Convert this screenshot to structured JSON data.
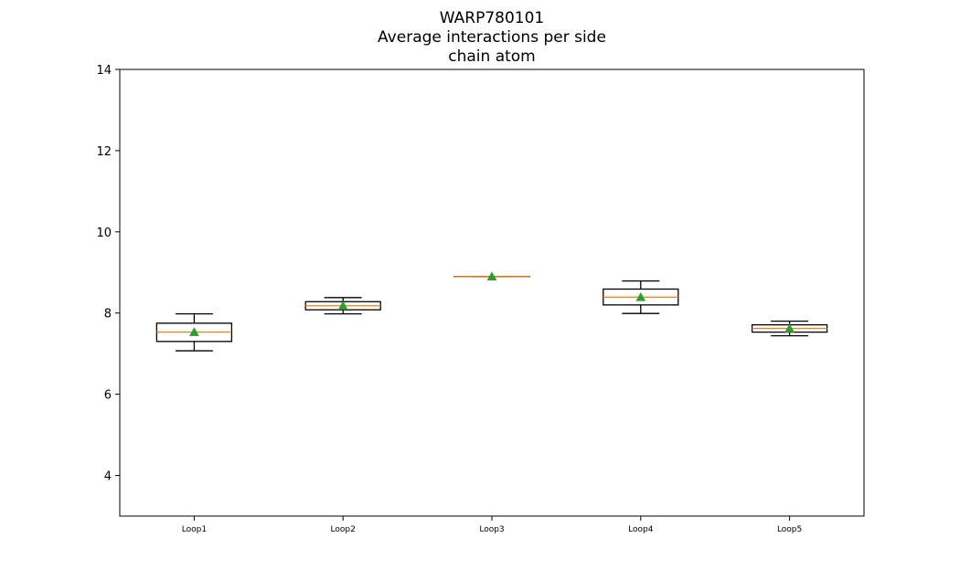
{
  "chart_data": {
    "type": "box",
    "title_lines": [
      "WARP780101",
      "Average interactions per side",
      "chain atom"
    ],
    "xlabel": "",
    "ylabel": "",
    "categories": [
      "Loop1",
      "Loop2",
      "Loop3",
      "Loop4",
      "Loop5"
    ],
    "ylim": [
      3,
      14
    ],
    "yticks": [
      4,
      6,
      8,
      10,
      12,
      14
    ],
    "grid": false,
    "boxes": [
      {
        "category": "Loop1",
        "whisker_low": 7.07,
        "q1": 7.3,
        "median": 7.53,
        "q3": 7.75,
        "whisker_high": 7.98,
        "mean": 7.53
      },
      {
        "category": "Loop2",
        "whisker_low": 7.98,
        "q1": 8.08,
        "median": 8.18,
        "q3": 8.28,
        "whisker_high": 8.38,
        "mean": 8.18
      },
      {
        "category": "Loop3",
        "whisker_low": 8.9,
        "q1": 8.9,
        "median": 8.9,
        "q3": 8.9,
        "whisker_high": 8.9,
        "mean": 8.9
      },
      {
        "category": "Loop4",
        "whisker_low": 7.99,
        "q1": 8.2,
        "median": 8.39,
        "q3": 8.59,
        "whisker_high": 8.79,
        "mean": 8.39
      },
      {
        "category": "Loop5",
        "whisker_low": 7.44,
        "q1": 7.53,
        "median": 7.62,
        "q3": 7.71,
        "whisker_high": 7.8,
        "mean": 7.62
      }
    ],
    "colors": {
      "box": "#000000",
      "median": "#ff7f0e",
      "mean": "#2ca02c"
    }
  }
}
